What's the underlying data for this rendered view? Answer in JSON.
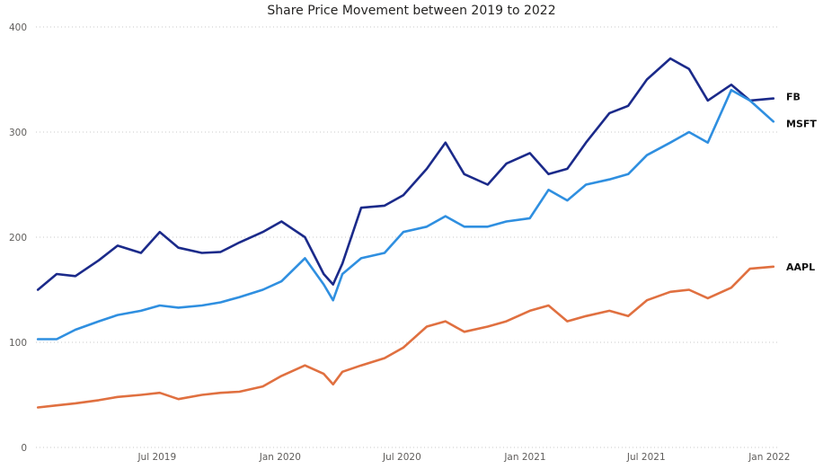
{
  "chart_data": {
    "type": "line",
    "title": "Share Price Movement between 2019 to 2022",
    "xlabel": "",
    "ylabel": "",
    "ylim": [
      0,
      400
    ],
    "y_ticks": [
      "0",
      "100",
      "200",
      "300",
      "400"
    ],
    "x_ticks": [
      "Jul 2019",
      "Jan 2020",
      "Jul 2020",
      "Jan 2021",
      "Jul 2021",
      "Jan 2022"
    ],
    "grid": "horizontal dotted",
    "legend": "none (series names labeled at line ends)",
    "x": [
      "2019-01-04",
      "2019-02-01",
      "2019-03-01",
      "2019-04-05",
      "2019-05-03",
      "2019-06-07",
      "2019-07-05",
      "2019-08-02",
      "2019-09-06",
      "2019-10-04",
      "2019-11-01",
      "2019-12-06",
      "2020-01-03",
      "2020-02-07",
      "2020-03-06",
      "2020-03-20",
      "2020-04-03",
      "2020-05-01",
      "2020-06-05",
      "2020-07-03",
      "2020-08-07",
      "2020-09-04",
      "2020-10-02",
      "2020-11-06",
      "2020-12-04",
      "2021-01-08",
      "2021-02-05",
      "2021-03-05",
      "2021-04-02",
      "2021-05-07",
      "2021-06-04",
      "2021-07-02",
      "2021-08-06",
      "2021-09-03",
      "2021-10-01",
      "2021-11-05",
      "2021-12-03",
      "2022-01-07"
    ],
    "series": [
      {
        "name": "FB",
        "color": "#1b2a8a",
        "values": [
          150,
          165,
          163,
          178,
          192,
          185,
          205,
          190,
          185,
          186,
          195,
          205,
          215,
          200,
          165,
          155,
          175,
          228,
          230,
          240,
          265,
          290,
          260,
          250,
          270,
          280,
          260,
          265,
          290,
          318,
          325,
          350,
          370,
          360,
          330,
          345,
          330,
          332
        ]
      },
      {
        "name": "MSFT",
        "color": "#2f8fe0",
        "values": [
          103,
          103,
          112,
          120,
          126,
          130,
          135,
          133,
          135,
          138,
          143,
          150,
          158,
          180,
          155,
          140,
          165,
          180,
          185,
          205,
          210,
          220,
          210,
          210,
          215,
          218,
          245,
          235,
          250,
          255,
          260,
          278,
          290,
          300,
          290,
          340,
          330,
          310
        ]
      },
      {
        "name": "AAPL",
        "color": "#e07040",
        "values": [
          38,
          40,
          42,
          45,
          48,
          50,
          52,
          46,
          50,
          52,
          53,
          58,
          68,
          78,
          70,
          60,
          72,
          78,
          85,
          95,
          115,
          120,
          110,
          115,
          120,
          130,
          135,
          120,
          125,
          130,
          125,
          140,
          148,
          150,
          142,
          152,
          170,
          172
        ]
      }
    ]
  }
}
